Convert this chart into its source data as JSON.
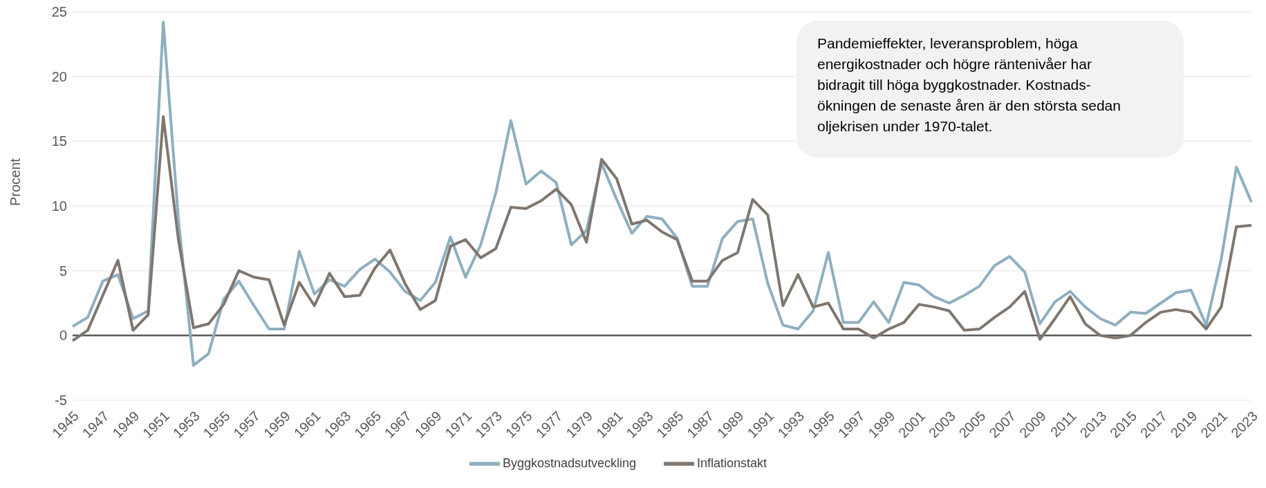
{
  "chart_data": {
    "type": "line",
    "ylabel": "Procent",
    "categories": [
      "1945",
      null,
      "1947",
      null,
      "1949",
      null,
      "1951",
      null,
      "1953",
      null,
      "1955",
      null,
      "1957",
      null,
      "1959",
      null,
      "1961",
      null,
      "1963",
      null,
      "1965",
      null,
      "1967",
      null,
      "1969",
      null,
      "1971",
      null,
      "1973",
      null,
      "1975",
      null,
      "1977",
      null,
      "1979",
      null,
      "1981",
      null,
      "1983",
      null,
      "1985",
      null,
      "1987",
      null,
      "1989",
      null,
      "1991",
      null,
      "1993",
      null,
      "1995",
      null,
      "1997",
      null,
      "1999",
      null,
      "2001",
      null,
      "2003",
      null,
      "2005",
      null,
      "2007",
      null,
      "2009",
      null,
      "2011",
      null,
      "2013",
      null,
      "2015",
      null,
      "2017",
      null,
      "2019",
      null,
      "2021",
      null,
      "2023"
    ],
    "series": [
      {
        "name": "Byggkostnadsutveckling",
        "color": "#8eafc0",
        "values": [
          0.7,
          1.4,
          4.2,
          4.7,
          1.3,
          1.9,
          24.2,
          9.0,
          -2.3,
          -1.4,
          2.8,
          4.2,
          2.3,
          0.5,
          0.5,
          6.5,
          3.2,
          4.3,
          3.8,
          5.1,
          5.9,
          4.9,
          3.4,
          2.7,
          4.1,
          7.6,
          4.5,
          7.0,
          11.0,
          16.6,
          11.7,
          12.7,
          11.8,
          7.0,
          8.1,
          13.3,
          10.5,
          7.9,
          9.2,
          9.0,
          7.5,
          3.8,
          3.8,
          7.5,
          8.8,
          9.0,
          4.0,
          0.8,
          0.5,
          1.9,
          6.4,
          1.0,
          1.0,
          2.6,
          1.0,
          4.1,
          3.9,
          3.0,
          2.5,
          3.1,
          3.8,
          5.4,
          6.1,
          4.9,
          0.9,
          2.6,
          3.4,
          2.2,
          1.3,
          0.8,
          1.8,
          1.7,
          2.5,
          3.3,
          3.5,
          0.8,
          5.9,
          13.0,
          10.3
        ]
      },
      {
        "name": "Inflationstakt",
        "color": "#7f766e",
        "values": [
          -0.4,
          0.4,
          3.1,
          5.8,
          0.4,
          1.6,
          16.9,
          7.4,
          0.6,
          0.9,
          2.4,
          5.0,
          4.5,
          4.3,
          0.8,
          4.1,
          2.3,
          4.8,
          3.0,
          3.1,
          5.2,
          6.6,
          4.0,
          2.0,
          2.7,
          6.9,
          7.4,
          6.0,
          6.7,
          9.9,
          9.8,
          10.4,
          11.3,
          10.1,
          7.2,
          13.6,
          12.1,
          8.6,
          8.9,
          8.0,
          7.4,
          4.2,
          4.2,
          5.8,
          6.4,
          10.5,
          9.3,
          2.3,
          4.7,
          2.2,
          2.5,
          0.5,
          0.5,
          -0.2,
          0.5,
          1.0,
          2.4,
          2.2,
          1.9,
          0.4,
          0.5,
          1.4,
          2.2,
          3.4,
          -0.3,
          1.3,
          3.0,
          0.9,
          0.0,
          -0.2,
          0.0,
          1.0,
          1.8,
          2.0,
          1.8,
          0.5,
          2.2,
          8.4,
          8.5
        ]
      }
    ],
    "ylim": [
      -5,
      25
    ],
    "yticks": [
      -5,
      0,
      5,
      10,
      15,
      20,
      25
    ],
    "grid": "y",
    "legend": "bottom",
    "marker": "none",
    "line_style": "solid",
    "ref_lines": [
      {
        "axis": "y",
        "value": 0,
        "color": "#595959"
      }
    ],
    "annotations": [
      "Pandemieffekter, leveransproblem, höga energikostnader och högre räntenivåer har bidragit till höga byggkostnader. Kostnads-ökningen de senaste åren är den största sedan oljekrisen under 1970-talet."
    ]
  }
}
